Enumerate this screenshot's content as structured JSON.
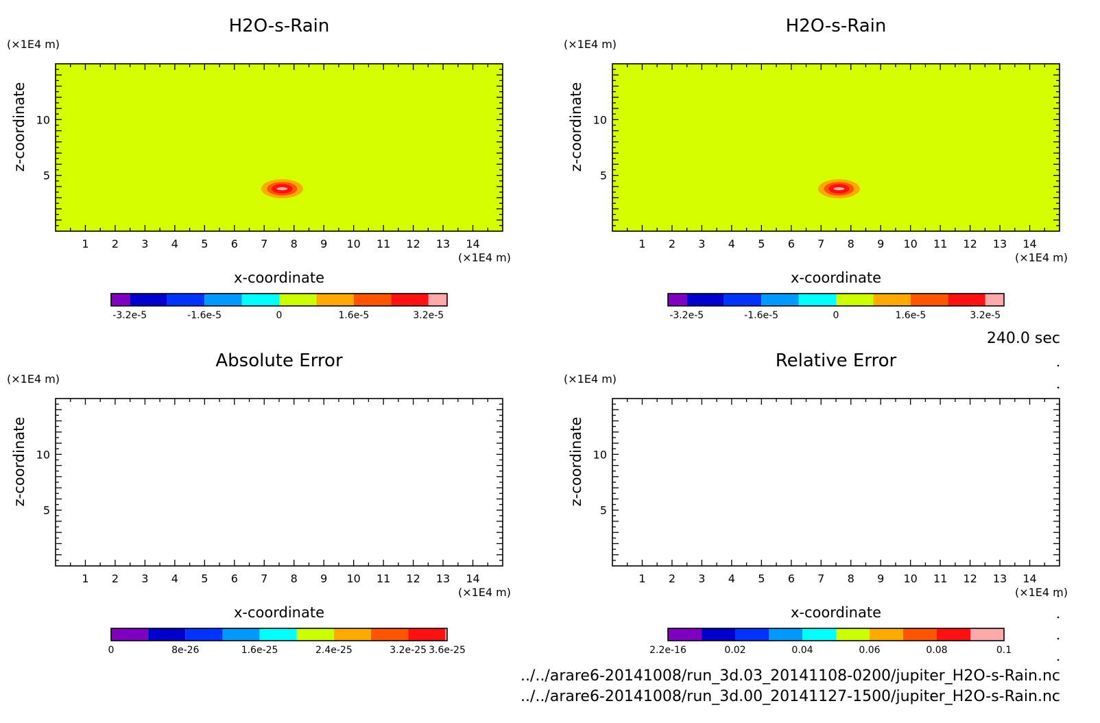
{
  "footer": {
    "time_label": "240.0 sec",
    "file_1": "../../arare6-20141008/run_3d.03_20141108-0200/jupiter_H2O-s-Rain.nc",
    "file_2": "../../arare6-20141008/run_3d.00_20141127-1500/jupiter_H2O-s-Rain.nc"
  },
  "chart_data": [
    {
      "type": "heatmap",
      "title": "H2O-s-Rain",
      "xlabel": "x-coordinate",
      "ylabel": "z-coordinate",
      "x_unit": "(×1E4 m)",
      "y_unit": "(×1E4 m)",
      "xlim": [
        0,
        15
      ],
      "ylim": [
        0,
        15
      ],
      "x_ticks": [
        "1",
        "2",
        "3",
        "4",
        "5",
        "6",
        "7",
        "8",
        "9",
        "10",
        "11",
        "12",
        "13",
        "14"
      ],
      "y_ticks": [
        "5",
        "10"
      ],
      "background_color": "#d5ff00",
      "anomaly": {
        "x_center": 7.6,
        "z_center": 3.8,
        "x_radius": 0.7,
        "z_radius": 0.85,
        "peak": 3.2e-05
      },
      "colorbar": {
        "colors": [
          "#7f00bf",
          "#0000cc",
          "#0033ff",
          "#0099ff",
          "#00ffff",
          "#ccff00",
          "#ffaa00",
          "#ff5500",
          "#ff1111",
          "#ffaaaa"
        ],
        "weights": [
          1,
          2,
          2,
          2,
          2,
          2,
          2,
          2,
          2,
          1
        ],
        "tick_labels": [
          "-3.2e-5",
          "-1.6e-5",
          "0",
          "1.6e-5",
          "3.2e-5"
        ],
        "tick_boundaries": [
          1,
          3,
          5,
          7,
          9
        ]
      }
    },
    {
      "type": "heatmap",
      "title": "H2O-s-Rain",
      "xlabel": "x-coordinate",
      "ylabel": "z-coordinate",
      "x_unit": "(×1E4 m)",
      "y_unit": "(×1E4 m)",
      "xlim": [
        0,
        15
      ],
      "ylim": [
        0,
        15
      ],
      "x_ticks": [
        "1",
        "2",
        "3",
        "4",
        "5",
        "6",
        "7",
        "8",
        "9",
        "10",
        "11",
        "12",
        "13",
        "14"
      ],
      "y_ticks": [
        "5",
        "10"
      ],
      "background_color": "#d5ff00",
      "anomaly": {
        "x_center": 7.6,
        "z_center": 3.8,
        "x_radius": 0.7,
        "z_radius": 0.85,
        "peak": 3.2e-05
      },
      "colorbar": {
        "colors": [
          "#7f00bf",
          "#0000cc",
          "#0033ff",
          "#0099ff",
          "#00ffff",
          "#ccff00",
          "#ffaa00",
          "#ff5500",
          "#ff1111",
          "#ffaaaa"
        ],
        "weights": [
          1,
          2,
          2,
          2,
          2,
          2,
          2,
          2,
          2,
          1
        ],
        "tick_labels": [
          "-3.2e-5",
          "-1.6e-5",
          "0",
          "1.6e-5",
          "3.2e-5"
        ],
        "tick_boundaries": [
          1,
          3,
          5,
          7,
          9
        ]
      }
    },
    {
      "type": "heatmap",
      "title": "Absolute Error",
      "xlabel": "x-coordinate",
      "ylabel": "z-coordinate",
      "x_unit": "(×1E4 m)",
      "y_unit": "(×1E4 m)",
      "xlim": [
        0,
        15
      ],
      "ylim": [
        0,
        15
      ],
      "x_ticks": [
        "1",
        "2",
        "3",
        "4",
        "5",
        "6",
        "7",
        "8",
        "9",
        "10",
        "11",
        "12",
        "13",
        "14"
      ],
      "y_ticks": [
        "5",
        "10"
      ],
      "background_color": "#ffffff",
      "anomaly": null,
      "colorbar": {
        "colors": [
          "#7f00bf",
          "#0000cc",
          "#0033ff",
          "#0099ff",
          "#00ffff",
          "#ccff00",
          "#ffaa00",
          "#ff5500",
          "#ff1111",
          "#ffaaaa"
        ],
        "weights": [
          2,
          2,
          2,
          2,
          2,
          2,
          2,
          2,
          2,
          0.1
        ],
        "tick_labels": [
          "0",
          "8e-26",
          "1.6e-25",
          "2.4e-25",
          "3.2e-25",
          "3.6e-25"
        ],
        "tick_boundaries": [
          0,
          2,
          4,
          6,
          8,
          10
        ]
      }
    },
    {
      "type": "heatmap",
      "title": "Relative Error",
      "xlabel": "x-coordinate",
      "ylabel": "z-coordinate",
      "x_unit": "(×1E4 m)",
      "y_unit": "(×1E4 m)",
      "xlim": [
        0,
        15
      ],
      "ylim": [
        0,
        15
      ],
      "x_ticks": [
        "1",
        "2",
        "3",
        "4",
        "5",
        "6",
        "7",
        "8",
        "9",
        "10",
        "11",
        "12",
        "13",
        "14"
      ],
      "y_ticks": [
        "5",
        "10"
      ],
      "background_color": "#ffffff",
      "anomaly": null,
      "colorbar": {
        "colors": [
          "#7f00bf",
          "#0000cc",
          "#0033ff",
          "#0099ff",
          "#00ffff",
          "#ccff00",
          "#ffaa00",
          "#ff5500",
          "#ff1111",
          "#ffaaaa"
        ],
        "weights": [
          1,
          1,
          1,
          1,
          1,
          1,
          1,
          1,
          1,
          1
        ],
        "tick_labels": [
          "2.2e-16",
          "0.02",
          "0.04",
          "0.06",
          "0.08",
          "0.1"
        ],
        "tick_boundaries": [
          0,
          2,
          4,
          6,
          8,
          10
        ]
      }
    }
  ]
}
